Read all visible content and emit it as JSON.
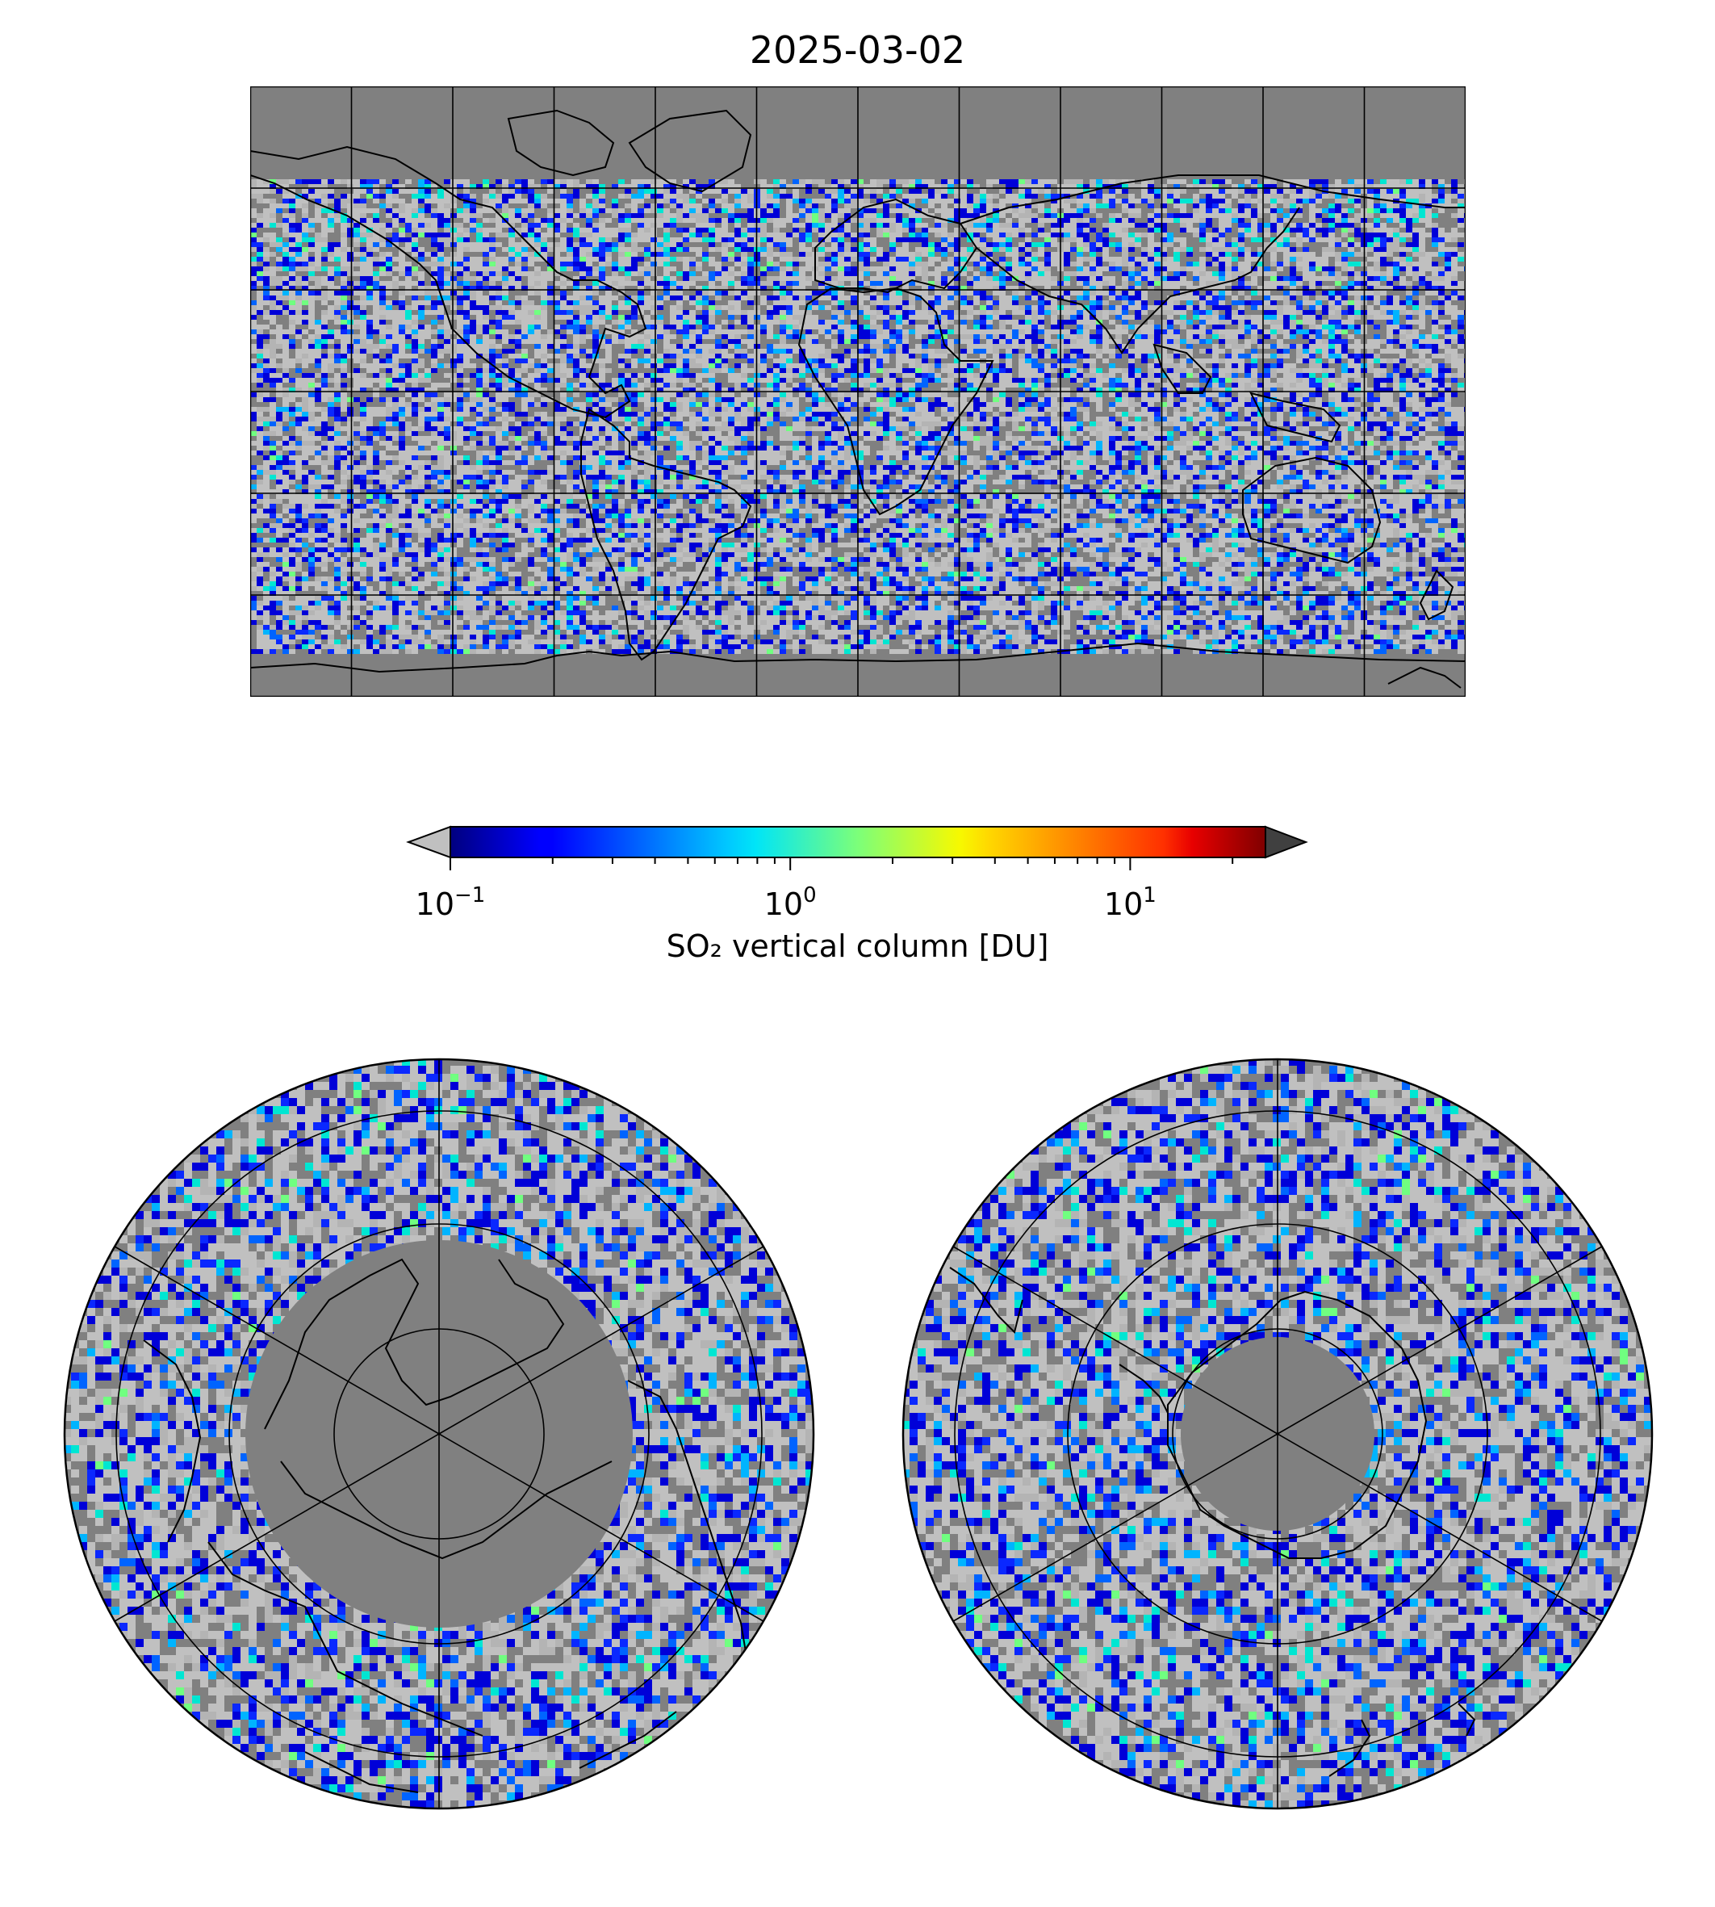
{
  "title": "2025-03-02",
  "colorbar": {
    "label": "SO₂ vertical column [DU]",
    "scale": "log",
    "range": [
      0.1,
      25
    ],
    "colormap": "jet",
    "under_color": "#c0c0c0",
    "over_color": "#404040",
    "extend": "both",
    "ticks": [
      {
        "value": 0.1,
        "base": "10",
        "exp": "−1"
      },
      {
        "value": 1,
        "base": "10",
        "exp": "0"
      },
      {
        "value": 10,
        "base": "10",
        "exp": "1"
      }
    ]
  },
  "maps": {
    "global": {
      "projection": "PlateCarree",
      "lon_range": [
        -180,
        180
      ],
      "lat_range": [
        -90,
        90
      ],
      "gridline_lon_step": 30,
      "gridline_lat_step": 30
    },
    "north_polar": {
      "projection": "NorthPolarStereo",
      "lat_boundary": 30,
      "gridline_lat": [
        40,
        60,
        80
      ]
    },
    "south_polar": {
      "projection": "SouthPolarStereo",
      "lat_boundary": -30,
      "gridline_lat": [
        -40,
        -60,
        -80
      ]
    }
  },
  "colors": {
    "no_data": "#808080",
    "below_range": "#c0c0c0",
    "coastline": "#000000"
  }
}
